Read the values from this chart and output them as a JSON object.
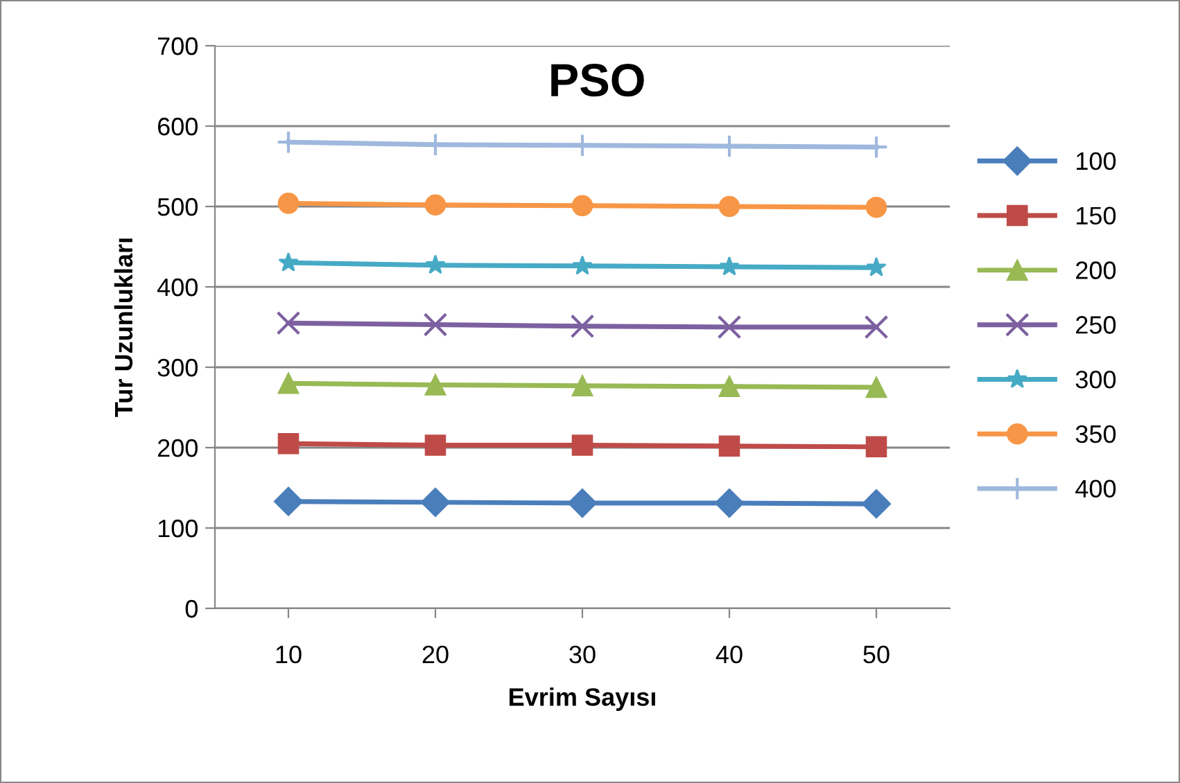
{
  "chart_data": {
    "type": "line",
    "title": "PSO",
    "xlabel": "Evrim Sayısı",
    "ylabel": "Tur Uzunlukları",
    "categories": [
      "10",
      "20",
      "30",
      "40",
      "50"
    ],
    "series": [
      {
        "name": "100",
        "color": "#4a7ebb",
        "marker": "diamond",
        "values": [
          133,
          132,
          131,
          131,
          130
        ]
      },
      {
        "name": "150",
        "color": "#be4b48",
        "marker": "square",
        "values": [
          205,
          203,
          203,
          202,
          201
        ]
      },
      {
        "name": "200",
        "color": "#98b954",
        "marker": "triangle",
        "values": [
          280,
          278,
          277,
          276,
          275
        ]
      },
      {
        "name": "250",
        "color": "#7d60a0",
        "marker": "cross",
        "values": [
          355,
          353,
          351,
          350,
          350
        ]
      },
      {
        "name": "300",
        "color": "#46aac5",
        "marker": "star",
        "values": [
          430,
          427,
          426,
          425,
          424
        ]
      },
      {
        "name": "350",
        "color": "#f79646",
        "marker": "circle",
        "values": [
          504,
          502,
          501,
          500,
          499
        ]
      },
      {
        "name": "400",
        "color": "#9fb8dd",
        "marker": "plus",
        "values": [
          580,
          577,
          576,
          575,
          574
        ]
      }
    ],
    "ylim": [
      0,
      700
    ],
    "yticks": [
      0,
      100,
      200,
      300,
      400,
      500,
      600,
      700
    ],
    "grid": "y",
    "legend": "right",
    "line_style": "solid"
  }
}
